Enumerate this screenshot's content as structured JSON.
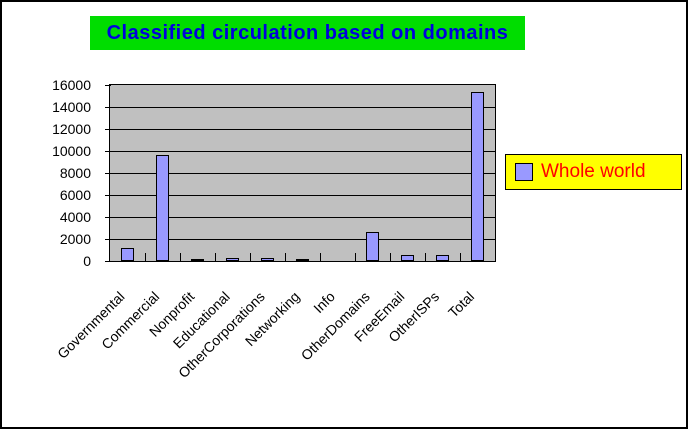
{
  "window": {
    "background": "#FFFFFF",
    "border_color": "#000000"
  },
  "title": {
    "text": "Classified circulation based on domains",
    "bg": "#00DD00",
    "color": "#0000DD"
  },
  "legend": {
    "label": "Whole world",
    "bg": "#FFFF00",
    "text_color": "#FF0000",
    "swatch_color": "#9999FF",
    "position": "right"
  },
  "chart_data": {
    "type": "bar",
    "title": "Classified circulation based on domains",
    "categories": [
      "Governmental",
      "Commercial",
      "Nonprofit",
      "Educational",
      "OtherCorporations",
      "Networking",
      "Info",
      "OtherDomains",
      "FreeEmail",
      "OtherISPs",
      "Total"
    ],
    "series": [
      {
        "name": "Whole world",
        "values": [
          1200,
          9600,
          200,
          300,
          300,
          50,
          0,
          2600,
          550,
          550,
          15350
        ]
      }
    ],
    "xlabel": "",
    "ylabel": "",
    "ylim": [
      0,
      16000
    ],
    "ytick_interval": 2000,
    "yticks": [
      0,
      2000,
      4000,
      6000,
      8000,
      10000,
      12000,
      14000,
      16000
    ],
    "grid": true,
    "grid_color": "#000000",
    "plot_bg": "#C0C0C0",
    "bar_color": "#9999FF",
    "bar_border_color": "#000000",
    "legend_position": "right",
    "x_label_rotation_deg": 45
  }
}
